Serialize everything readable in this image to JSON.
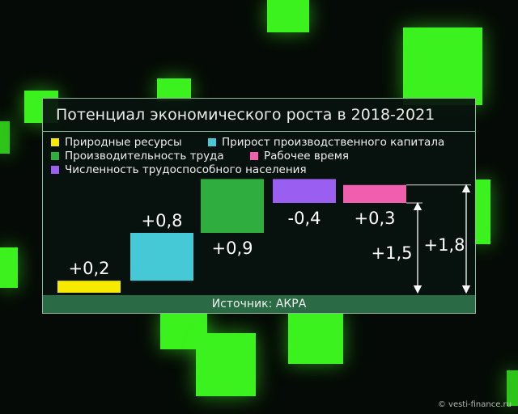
{
  "chart_data": {
    "type": "bar",
    "title": "Потенциал экономического роста в 2018-2021",
    "categories": [
      "Природные ресурсы",
      "Прирост производственного капитала",
      "Производительность труда",
      "Численность трудоспособного населения",
      "Рабочее время"
    ],
    "values": [
      0.2,
      0.8,
      0.9,
      -0.4,
      0.3
    ],
    "value_labels": [
      "+0,2",
      "+0,8",
      "+0,9",
      "-0,4",
      "+0,3"
    ],
    "colors": [
      "#f6ea00",
      "#45c9d6",
      "#2fae3f",
      "#9a5ff0",
      "#ef5fae"
    ],
    "annotations": [
      {
        "label": "+1,5",
        "value": 1.5
      },
      {
        "label": "+1,8",
        "value": 1.8
      }
    ],
    "legend": [
      {
        "label": "Природные ресурсы",
        "color": "#f6ea00"
      },
      {
        "label": "Прирост производственного капитала",
        "color": "#45c9d6"
      },
      {
        "label": "Производительность труда",
        "color": "#2fae3f"
      },
      {
        "label": "Рабочее время",
        "color": "#ef5fae"
      },
      {
        "label": "Численность трудоспособного населения",
        "color": "#9a5ff0"
      }
    ],
    "source": "Источник: АКРА"
  },
  "watermark": "© vesti-finance.ru",
  "colors": {
    "background_cube": "#3cf21e",
    "panel_border": "#8fb89a",
    "source_bar": "#2a6a44"
  }
}
